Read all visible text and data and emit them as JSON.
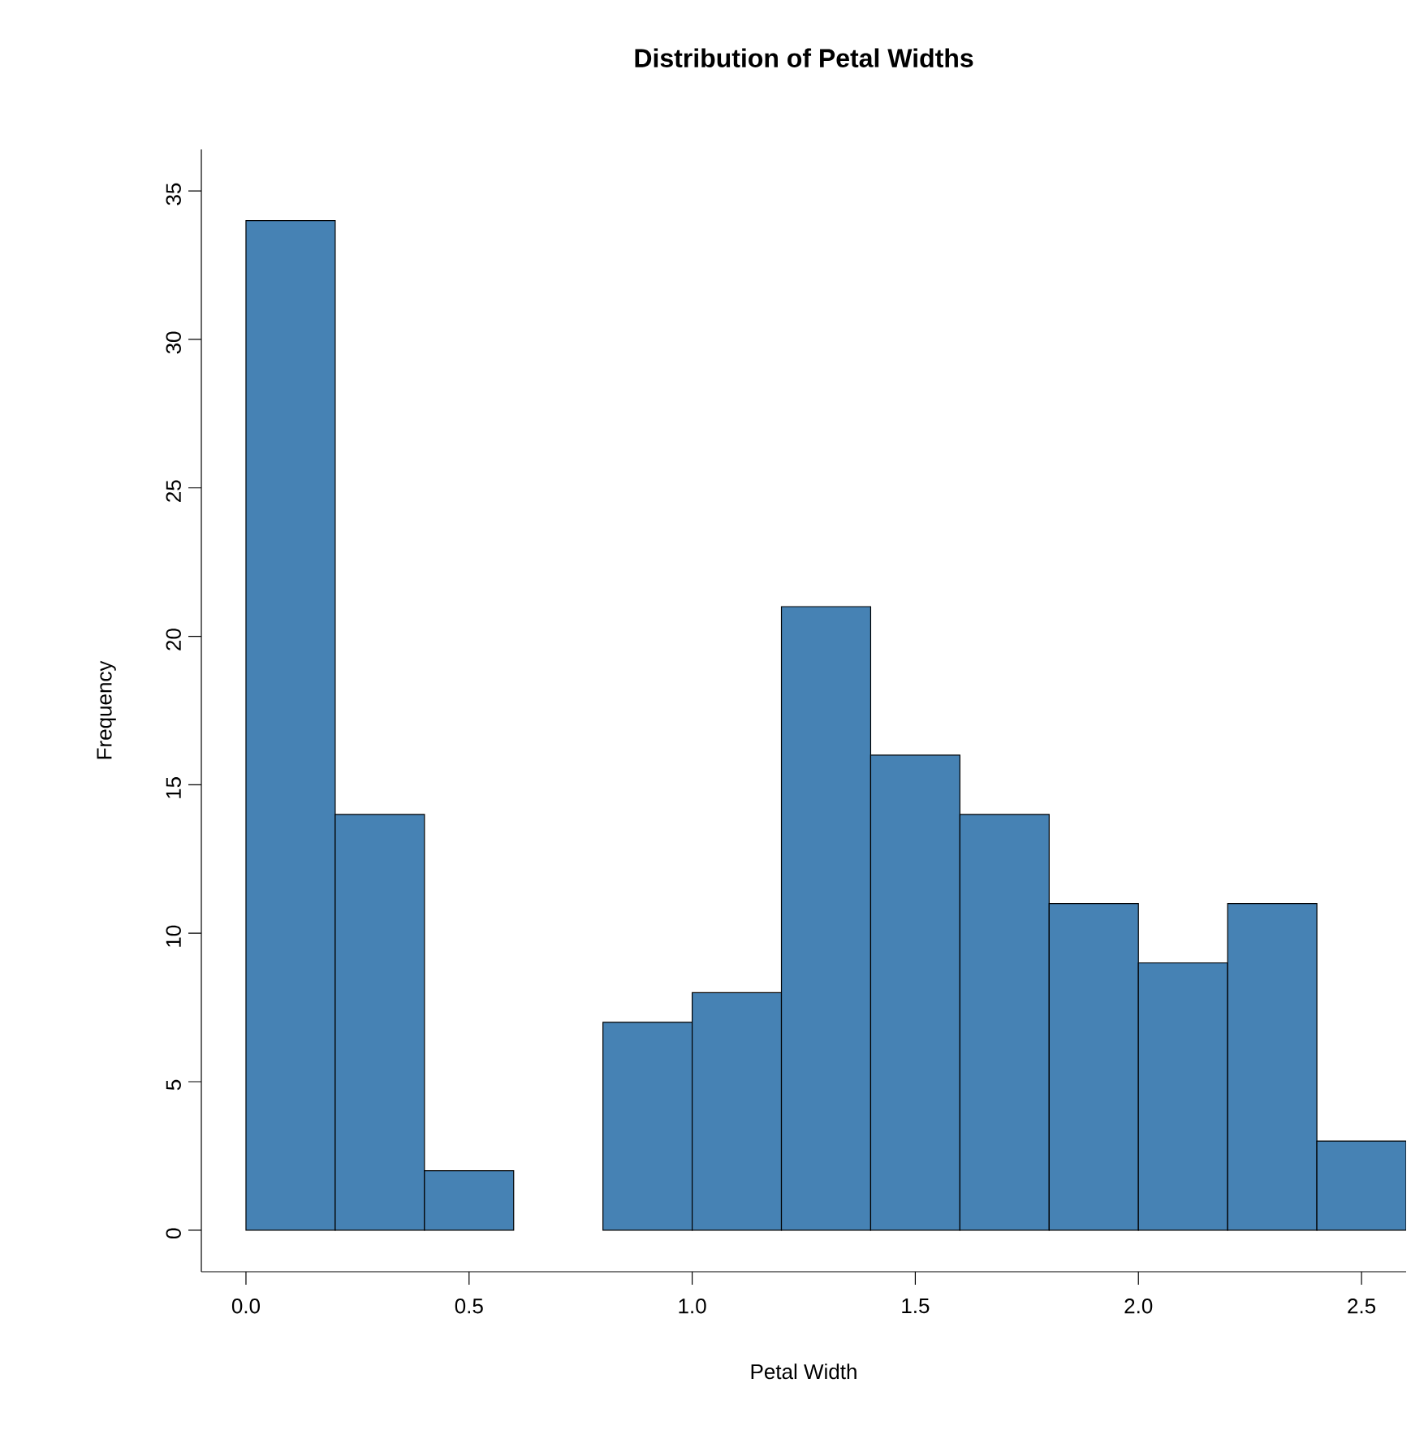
{
  "chart_data": {
    "type": "histogram",
    "title": "Distribution of Petal Widths",
    "xlabel": "Petal Width",
    "ylabel": "Frequency",
    "bins": [
      0,
      0.2,
      0.4,
      0.6,
      0.8,
      1.0,
      1.2,
      1.4,
      1.6,
      1.8,
      2.0,
      2.2,
      2.4,
      2.6
    ],
    "values": [
      34,
      14,
      2,
      0,
      7,
      8,
      21,
      16,
      14,
      11,
      9,
      11,
      3
    ],
    "color": "#4682b4",
    "xlim": [
      -0.1,
      2.6
    ],
    "ylim": [
      -1.4,
      36.4
    ],
    "xticks": [
      {
        "value": 0,
        "label": "0.0"
      },
      {
        "value": 0.5,
        "label": "0.5"
      },
      {
        "value": 1.0,
        "label": "1.0"
      },
      {
        "value": 1.5,
        "label": "1.5"
      },
      {
        "value": 2.0,
        "label": "2.0"
      },
      {
        "value": 2.5,
        "label": "2.5"
      }
    ],
    "yticks": [
      0,
      5,
      10,
      15,
      20,
      25,
      30,
      35
    ],
    "grid": false
  }
}
